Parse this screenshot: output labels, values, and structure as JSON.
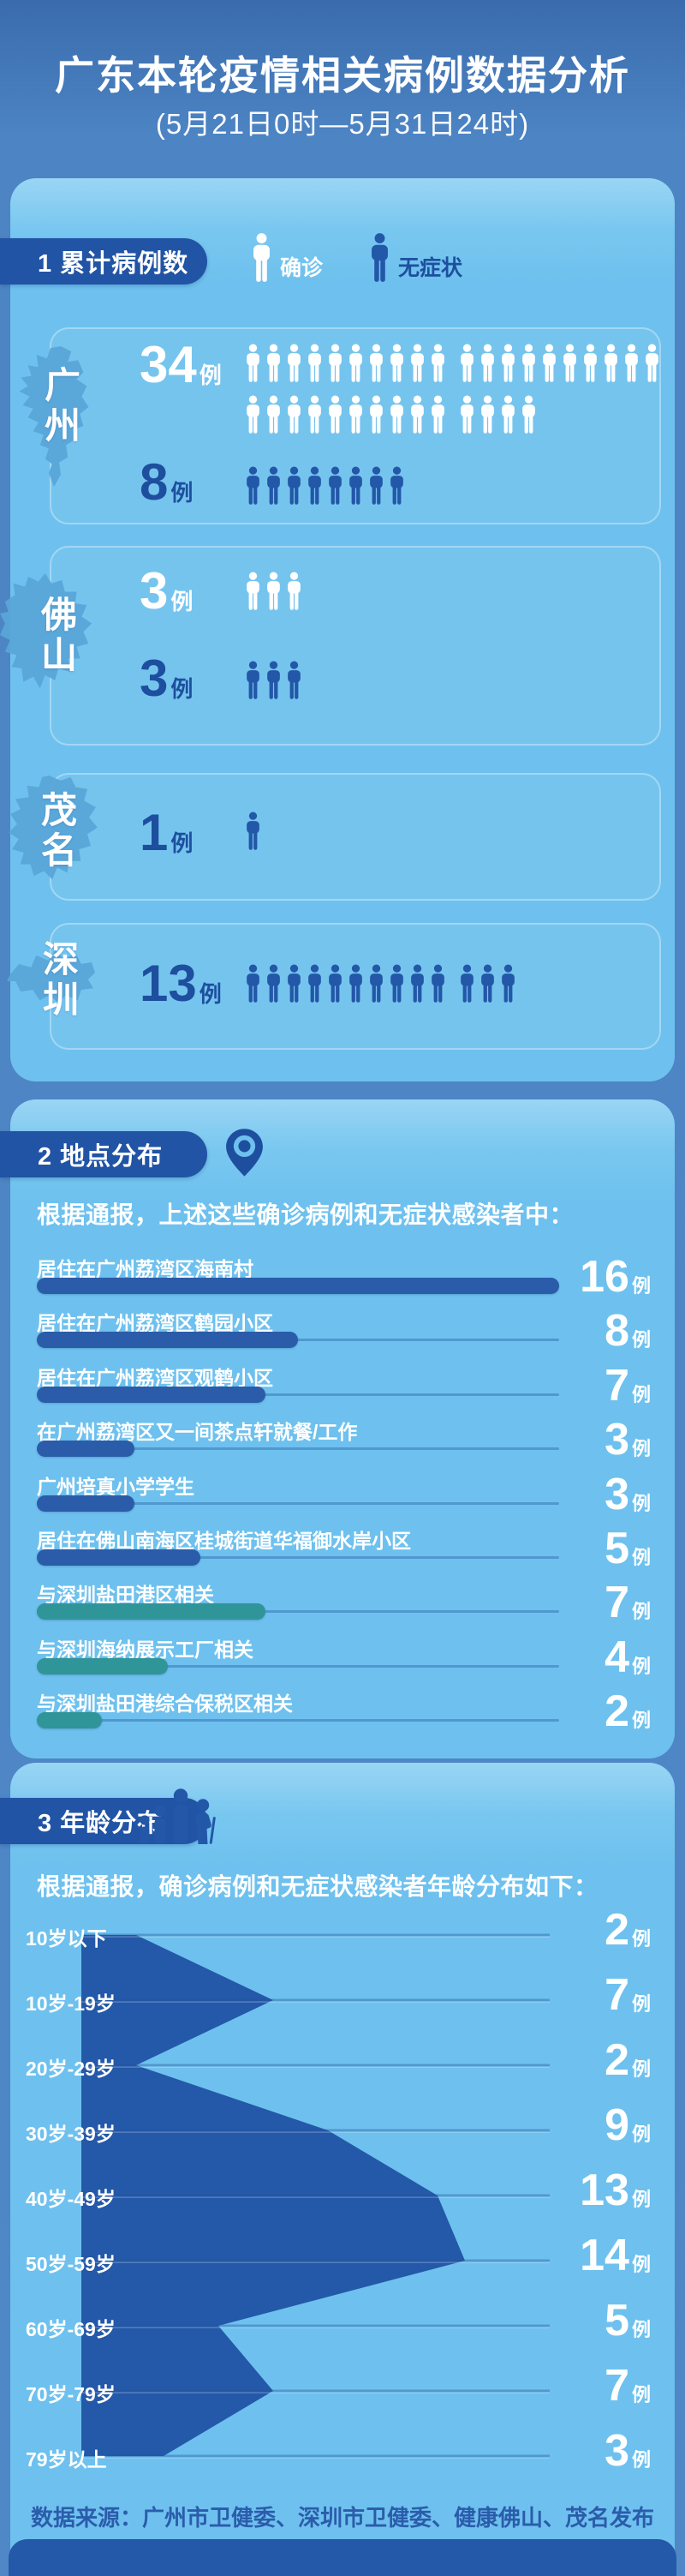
{
  "header": {
    "title": "广东本轮疫情相关病例数据分析",
    "subtitle": "(5月21日0时—5月31日24时)"
  },
  "colors": {
    "navy_text": "#1d4f9e",
    "icon_navy": "#2357a8",
    "bar_navy": "#2b5ca9",
    "bar_teal": "#2f9599",
    "pill_navy": "#2154a4",
    "card_blue": "#6ec1ee",
    "map_blue": "#58a5d8",
    "white": "#ffffff"
  },
  "sections": [
    {
      "label": "1 累计病例数",
      "legend": [
        {
          "label": "确诊",
          "type": "confirmed"
        },
        {
          "label": "无症状",
          "type": "asymptomatic"
        }
      ],
      "unit": "例",
      "cities": [
        {
          "name": "广州",
          "rows": [
            {
              "type": "confirmed",
              "count": 34
            },
            {
              "type": "asymptomatic",
              "count": 8
            }
          ]
        },
        {
          "name": "佛山",
          "rows": [
            {
              "type": "confirmed",
              "count": 3
            },
            {
              "type": "asymptomatic",
              "count": 3
            }
          ]
        },
        {
          "name": "茂名",
          "rows": [
            {
              "type": "asymptomatic",
              "count": 1
            }
          ]
        },
        {
          "name": "深圳",
          "rows": [
            {
              "type": "asymptomatic",
              "count": 13
            }
          ]
        }
      ]
    },
    {
      "label": "2 地点分布",
      "intro": "根据通报，上述这些确诊病例和无症状感染者中：",
      "unit": "例",
      "max": 16,
      "bars": [
        {
          "label": "居住在广州荔湾区海南村",
          "value": 16,
          "color": "navy"
        },
        {
          "label": "居住在广州荔湾区鹤园小区",
          "value": 8,
          "color": "navy"
        },
        {
          "label": "居住在广州荔湾区观鹤小区",
          "value": 7,
          "color": "navy"
        },
        {
          "label": "在广州荔湾区又一间茶点轩就餐/工作",
          "value": 3,
          "color": "navy"
        },
        {
          "label": "广州培真小学学生",
          "value": 3,
          "color": "navy"
        },
        {
          "label": "居住在佛山南海区桂城街道华福御水岸小区",
          "value": 5,
          "color": "navy"
        },
        {
          "label": "与深圳盐田港区相关",
          "value": 7,
          "color": "teal"
        },
        {
          "label": "与深圳海纳展示工厂相关",
          "value": 4,
          "color": "teal"
        },
        {
          "label": "与深圳盐田港综合保税区相关",
          "value": 2,
          "color": "teal"
        }
      ]
    },
    {
      "label": "3 年龄分布",
      "intro": "根据通报，确诊病例和无症状感染者年龄分布如下：",
      "unit": "例",
      "max": 14,
      "ages": [
        {
          "label": "10岁以下",
          "value": 2
        },
        {
          "label": "10岁-19岁",
          "value": 7
        },
        {
          "label": "20岁-29岁",
          "value": 2
        },
        {
          "label": "30岁-39岁",
          "value": 9
        },
        {
          "label": "40岁-49岁",
          "value": 13
        },
        {
          "label": "50岁-59岁",
          "value": 14
        },
        {
          "label": "60岁-69岁",
          "value": 5
        },
        {
          "label": "70岁-79岁",
          "value": 7
        },
        {
          "label": "79岁以上",
          "value": 3
        }
      ]
    }
  ],
  "footer": {
    "source": "数据来源：广州市卫健委、深圳市卫健委、健康佛山、茂名发布"
  },
  "chart_data": [
    {
      "type": "pictograph",
      "title": "1 累计病例数",
      "categories": [
        "广州",
        "佛山",
        "茂名",
        "深圳"
      ],
      "series": [
        {
          "name": "确诊",
          "values": [
            34,
            3,
            0,
            0
          ]
        },
        {
          "name": "无症状",
          "values": [
            8,
            3,
            1,
            13
          ]
        }
      ],
      "unit": "例"
    },
    {
      "type": "bar",
      "title": "2 地点分布",
      "categories": [
        "居住在广州荔湾区海南村",
        "居住在广州荔湾区鹤园小区",
        "居住在广州荔湾区观鹤小区",
        "在广州荔湾区又一间茶点轩就餐/工作",
        "广州培真小学学生",
        "居住在佛山南海区桂城街道华福御水岸小区",
        "与深圳盐田港区相关",
        "与深圳海纳展示工厂相关",
        "与深圳盐田港综合保税区相关"
      ],
      "values": [
        16,
        8,
        7,
        3,
        3,
        5,
        7,
        4,
        2
      ],
      "unit": "例",
      "xlim": [
        0,
        16
      ],
      "orientation": "horizontal"
    },
    {
      "type": "area",
      "title": "3 年龄分布",
      "categories": [
        "10岁以下",
        "10岁-19岁",
        "20岁-29岁",
        "30岁-39岁",
        "40岁-49岁",
        "50岁-59岁",
        "60岁-69岁",
        "70岁-79岁",
        "79岁以上"
      ],
      "values": [
        2,
        7,
        2,
        9,
        13,
        14,
        5,
        7,
        3
      ],
      "unit": "例",
      "orientation": "horizontal-funnel"
    }
  ]
}
